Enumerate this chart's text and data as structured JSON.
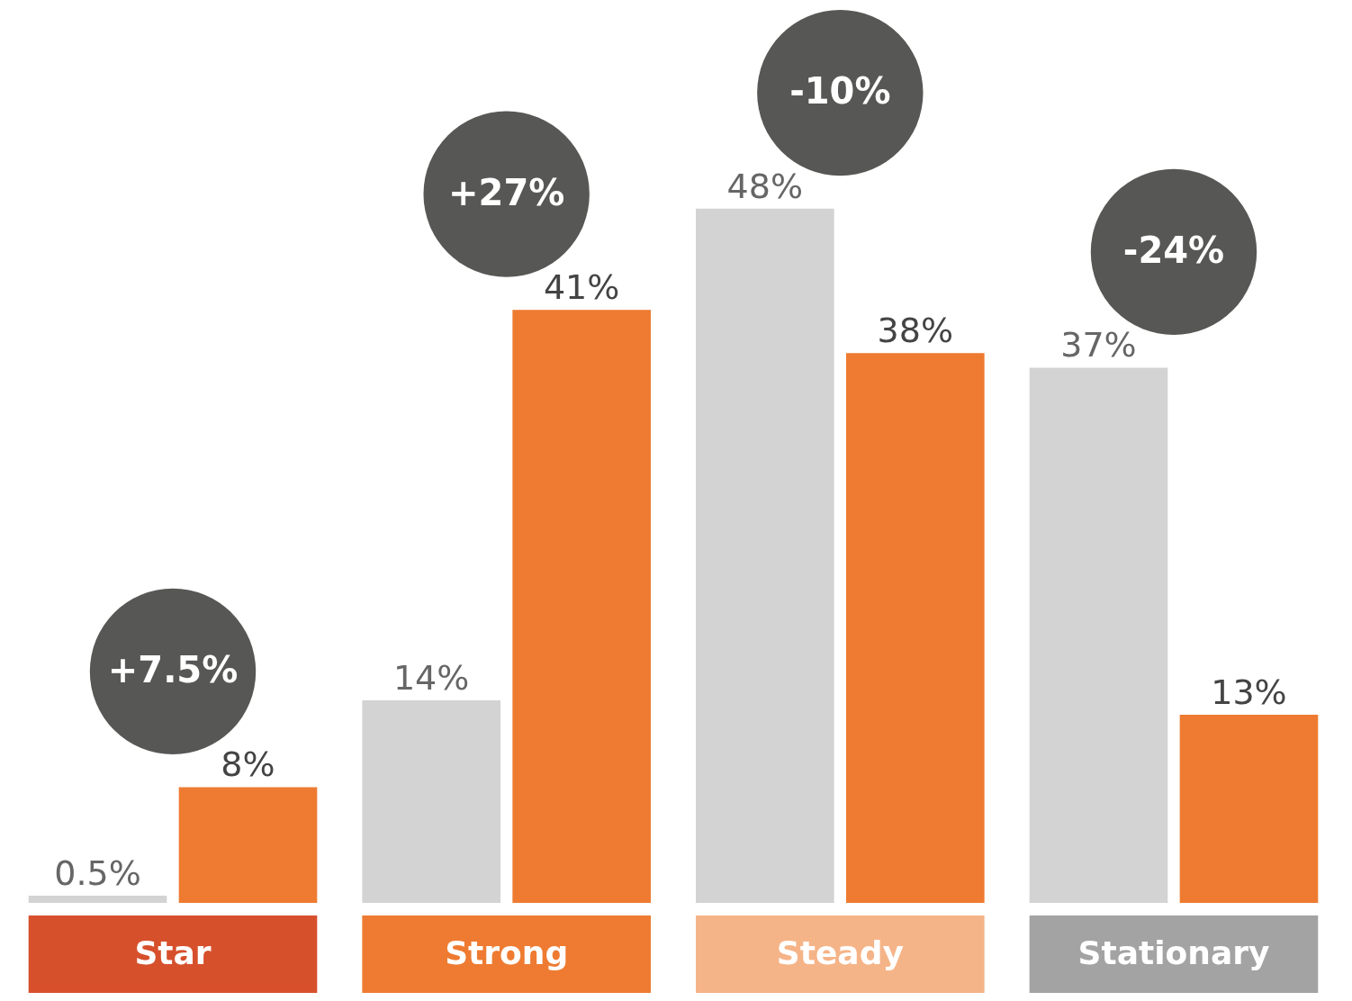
{
  "chart_data": {
    "type": "bar",
    "categories": [
      "Star",
      "Strong",
      "Steady",
      "Stationary"
    ],
    "series": [
      {
        "color": "#d3d3d3",
        "values": [
          0.5,
          14,
          48,
          37
        ],
        "value_labels": [
          "0.5%",
          "14%",
          "48%",
          "37%"
        ]
      },
      {
        "color": "#ee7b31",
        "values": [
          8,
          41,
          38,
          13
        ],
        "value_labels": [
          "8%",
          "41%",
          "38%",
          "13%"
        ]
      }
    ],
    "legend": false,
    "annotations": [
      "+7.5%",
      "+27%",
      "-10%",
      "-24%"
    ]
  }
}
